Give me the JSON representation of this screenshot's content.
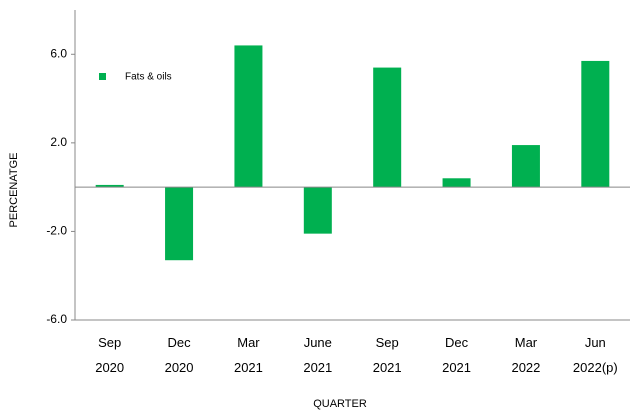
{
  "chart_data": {
    "type": "bar",
    "categories": [
      "Sep\n2020",
      "Dec\n2020",
      "Mar\n2021",
      "June\n2021",
      "Sep\n2021",
      "Dec\n2021",
      "Mar\n2022",
      "Jun\n2022(p)"
    ],
    "series": [
      {
        "name": "Fats & oils",
        "color": "#00b050",
        "values": [
          0.1,
          -3.3,
          6.4,
          -2.1,
          5.4,
          0.4,
          1.9,
          5.7
        ]
      }
    ],
    "ylim": [
      -6,
      8
    ],
    "yticks": [
      {
        "value": -6,
        "label": "-6.0"
      },
      {
        "value": -2,
        "label": "-2.0"
      },
      {
        "value": 2,
        "label": "2.0"
      },
      {
        "value": 6,
        "label": "6.0"
      }
    ],
    "xlabel": "QUARTER",
    "ylabel": "PERCENATGE",
    "legend": "upper left",
    "grid": false
  }
}
